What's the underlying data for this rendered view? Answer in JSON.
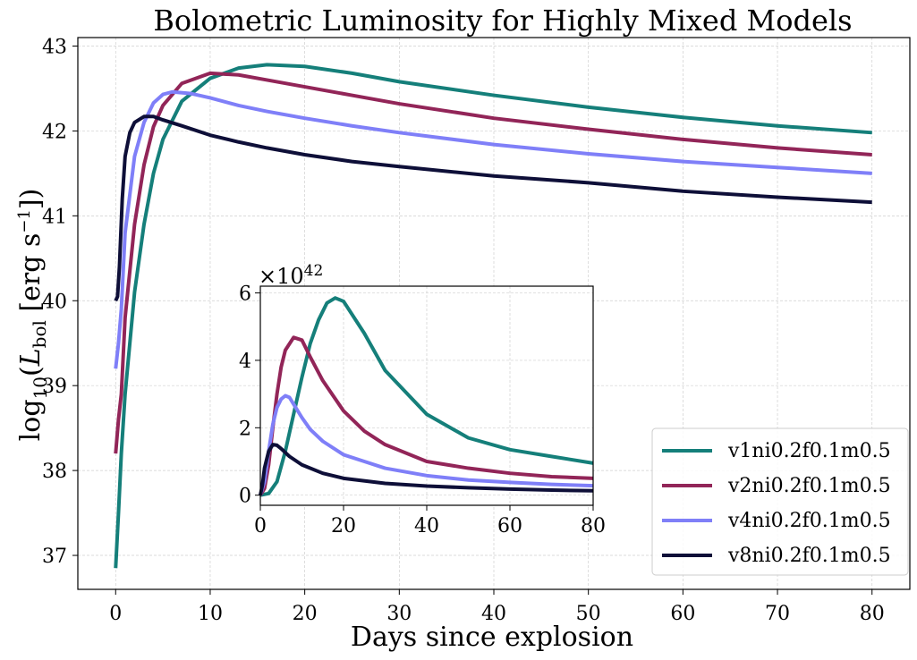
{
  "chart_data": [
    {
      "type": "line",
      "title": "Bolometric Luminosity for Highly Mixed Models",
      "xlabel": "Days since explosion",
      "ylabel": "log10(L_bol [erg s^-1])",
      "ylabel_parts": {
        "pre": "log",
        "sub": "10",
        "open": "(",
        "L": "L",
        "Lsub": "bol",
        "units": " [erg s",
        "sup": "−1",
        "close": "])"
      },
      "xlim": [
        -4,
        84
      ],
      "ylim": [
        36.6,
        43.1
      ],
      "xticks": [
        0,
        10,
        20,
        30,
        40,
        50,
        60,
        70,
        80
      ],
      "yticks": [
        37,
        38,
        39,
        40,
        41,
        42,
        43
      ],
      "grid": true,
      "legend_position": "bottom-right",
      "series": [
        {
          "name": "v1ni0.2f0.1m0.5",
          "color": "#157f7a",
          "x": [
            0,
            0.3,
            0.6,
            1,
            2,
            3,
            4,
            5,
            7,
            10,
            13,
            16,
            20,
            25,
            30,
            40,
            50,
            60,
            70,
            80
          ],
          "y": [
            36.85,
            37.5,
            38.2,
            38.9,
            40.1,
            40.9,
            41.5,
            41.9,
            42.35,
            42.62,
            42.74,
            42.78,
            42.76,
            42.68,
            42.58,
            42.42,
            42.28,
            42.16,
            42.06,
            41.98
          ]
        },
        {
          "name": "v2ni0.2f0.1m0.5",
          "color": "#922558",
          "x": [
            0,
            0.3,
            0.6,
            1,
            2,
            3,
            4,
            5,
            7,
            10,
            13,
            16,
            20,
            25,
            30,
            40,
            50,
            60,
            70,
            80
          ],
          "y": [
            38.2,
            38.6,
            38.9,
            39.8,
            40.9,
            41.6,
            42.05,
            42.3,
            42.56,
            42.68,
            42.66,
            42.6,
            42.52,
            42.42,
            42.32,
            42.15,
            42.02,
            41.9,
            41.8,
            41.72
          ]
        },
        {
          "name": "v4ni0.2f0.1m0.5",
          "color": "#7f7ff8",
          "x": [
            0,
            0.3,
            0.6,
            1,
            2,
            3,
            4,
            5,
            6,
            8,
            10,
            13,
            16,
            20,
            25,
            30,
            40,
            50,
            60,
            70,
            80
          ],
          "y": [
            39.2,
            39.5,
            39.9,
            40.8,
            41.7,
            42.1,
            42.33,
            42.43,
            42.46,
            42.44,
            42.39,
            42.3,
            42.23,
            42.15,
            42.06,
            41.98,
            41.84,
            41.73,
            41.64,
            41.57,
            41.5
          ]
        },
        {
          "name": "v8ni0.2f0.1m0.5",
          "color": "#0e0f38",
          "x": [
            0,
            0.2,
            0.4,
            0.7,
            1,
            1.5,
            2,
            3,
            4,
            5,
            7,
            10,
            13,
            16,
            20,
            25,
            30,
            40,
            50,
            60,
            70,
            80
          ],
          "y": [
            40.0,
            40.05,
            40.4,
            41.2,
            41.7,
            41.98,
            42.1,
            42.17,
            42.17,
            42.13,
            42.06,
            41.95,
            41.87,
            41.8,
            41.72,
            41.64,
            41.58,
            41.47,
            41.39,
            41.29,
            41.22,
            41.16
          ]
        }
      ]
    },
    {
      "type": "line",
      "title": "",
      "xlabel": "",
      "ylabel": "",
      "offset_text": {
        "base": "×10",
        "exp": "42"
      },
      "xlim": [
        0,
        80
      ],
      "ylim": [
        -0.3,
        6.2
      ],
      "xticks": [
        0,
        20,
        40,
        60,
        80
      ],
      "yticks": [
        0,
        2,
        4,
        6
      ],
      "grid": true,
      "series": [
        {
          "name": "v1ni0.2f0.1m0.5",
          "color": "#157f7a",
          "x": [
            0,
            2,
            4,
            6,
            8,
            10,
            12,
            14,
            16,
            18,
            20,
            25,
            30,
            40,
            50,
            60,
            70,
            80
          ],
          "y": [
            0.0,
            0.05,
            0.4,
            1.3,
            2.4,
            3.5,
            4.5,
            5.2,
            5.7,
            5.85,
            5.75,
            4.8,
            3.7,
            2.4,
            1.7,
            1.35,
            1.15,
            0.95
          ]
        },
        {
          "name": "v2ni0.2f0.1m0.5",
          "color": "#922558",
          "x": [
            0,
            1,
            2,
            3,
            4,
            5,
            6,
            8,
            10,
            12,
            15,
            20,
            25,
            30,
            40,
            50,
            60,
            70,
            80
          ],
          "y": [
            0.0,
            0.2,
            0.9,
            2.0,
            3.0,
            3.8,
            4.3,
            4.68,
            4.6,
            4.1,
            3.4,
            2.5,
            1.9,
            1.5,
            1.0,
            0.8,
            0.65,
            0.55,
            0.5
          ]
        },
        {
          "name": "v4ni0.2f0.1m0.5",
          "color": "#7f7ff8",
          "x": [
            0,
            1,
            2,
            3,
            4,
            5,
            6,
            7,
            8,
            10,
            12,
            15,
            20,
            25,
            30,
            40,
            50,
            60,
            70,
            80
          ],
          "y": [
            0.0,
            0.4,
            1.3,
            2.1,
            2.6,
            2.85,
            2.95,
            2.9,
            2.7,
            2.3,
            1.95,
            1.6,
            1.2,
            1.0,
            0.8,
            0.58,
            0.45,
            0.38,
            0.32,
            0.28
          ]
        },
        {
          "name": "v8ni0.2f0.1m0.5",
          "color": "#0e0f38",
          "x": [
            0,
            0.5,
            1,
            2,
            3,
            4,
            5,
            7,
            10,
            15,
            20,
            30,
            40,
            50,
            60,
            70,
            80
          ],
          "y": [
            0.0,
            0.3,
            0.8,
            1.3,
            1.5,
            1.48,
            1.38,
            1.15,
            0.9,
            0.65,
            0.5,
            0.35,
            0.27,
            0.22,
            0.18,
            0.15,
            0.13
          ]
        }
      ]
    }
  ]
}
